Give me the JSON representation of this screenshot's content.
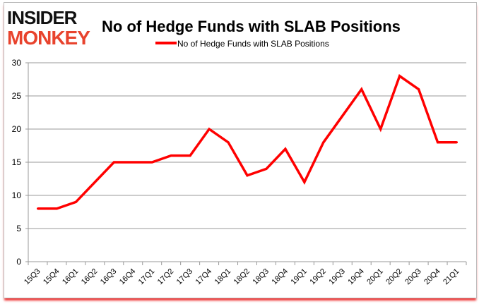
{
  "logo": {
    "line1": "INSIDER",
    "line2": "MONKEY",
    "colors": {
      "line1": "#111111",
      "line2": "#e8432d"
    }
  },
  "chart_data": {
    "type": "line",
    "title": "No of Hedge Funds with SLAB Positions",
    "xlabel": "",
    "ylabel": "",
    "legend": {
      "placement": "top",
      "entries": [
        "No of Hedge Funds with SLAB Positions"
      ]
    },
    "grid": true,
    "ylim": [
      0,
      30
    ],
    "yticks": [
      0,
      5,
      10,
      15,
      20,
      25,
      30
    ],
    "categories": [
      "15Q3",
      "15Q4",
      "16Q1",
      "16Q2",
      "16Q3",
      "16Q4",
      "17Q1",
      "17Q2",
      "17Q3",
      "17Q4",
      "18Q1",
      "18Q2",
      "18Q3",
      "18Q4",
      "19Q1",
      "19Q2",
      "19Q3",
      "19Q4",
      "20Q1",
      "20Q2",
      "20Q3",
      "20Q4",
      "21Q1"
    ],
    "series": [
      {
        "name": "No of Hedge Funds with SLAB Positions",
        "color": "#ff0000",
        "values": [
          8,
          8,
          9,
          12,
          15,
          15,
          15,
          16,
          16,
          20,
          18,
          13,
          14,
          17,
          12,
          18,
          22,
          26,
          20,
          28,
          26,
          18,
          18
        ]
      }
    ]
  }
}
